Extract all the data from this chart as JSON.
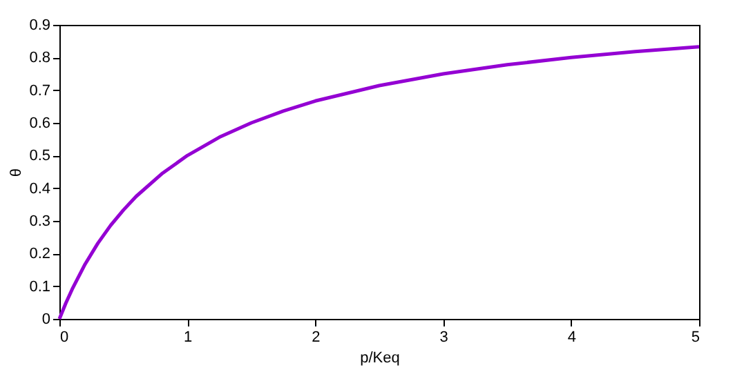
{
  "chart_data": {
    "type": "line",
    "xlabel": "p/Keq",
    "ylabel": "θ",
    "x": [
      0,
      0.05,
      0.1,
      0.2,
      0.3,
      0.4,
      0.5,
      0.6,
      0.8,
      1,
      1.25,
      1.5,
      1.75,
      2,
      2.5,
      3,
      3.5,
      4,
      4.5,
      5
    ],
    "series": [
      {
        "color": "#9400d3",
        "values": [
          0,
          0.048,
          0.091,
          0.167,
          0.231,
          0.286,
          0.333,
          0.375,
          0.444,
          0.5,
          0.556,
          0.6,
          0.636,
          0.667,
          0.714,
          0.75,
          0.778,
          0.8,
          0.818,
          0.833
        ]
      }
    ],
    "xlim": [
      0,
      5
    ],
    "xticks": [
      0,
      1,
      2,
      3,
      4,
      5
    ],
    "ylim": [
      0,
      0.9
    ],
    "yticks": [
      0,
      0.1,
      0.2,
      0.3,
      0.4,
      0.5,
      0.6,
      0.7,
      0.8,
      0.9
    ],
    "grid": false,
    "marker": "none",
    "line_style": "solid"
  }
}
